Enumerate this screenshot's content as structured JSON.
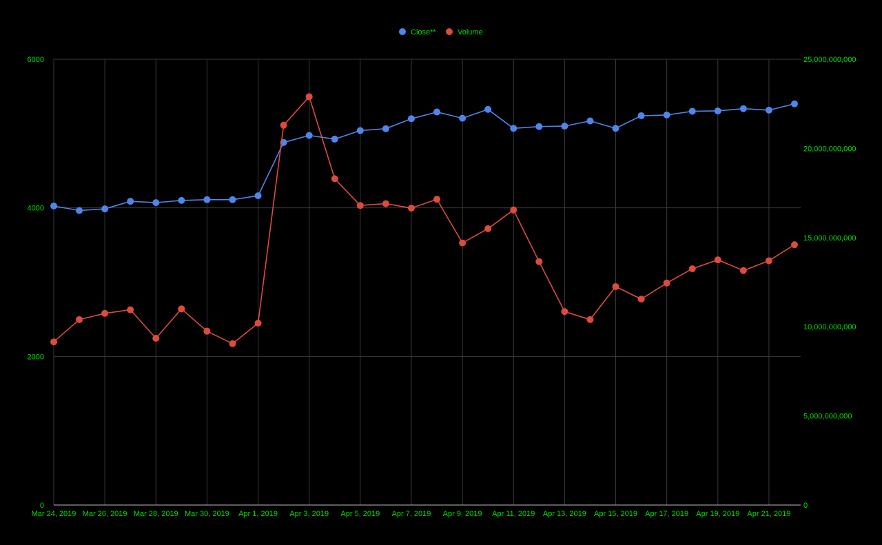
{
  "colors": {
    "background": "#000000",
    "grid": "#3a3a3a",
    "axis_line": "#bdbdbd",
    "label": "#00e000",
    "close": "#4f86ec",
    "volume": "#dd4b3e"
  },
  "legend": {
    "placement": "top-center",
    "close_label": "Close**",
    "volume_label": "Volume"
  },
  "chart_data": {
    "type": "line",
    "title": "",
    "xlabel": "",
    "ylabel": "",
    "y2label": "",
    "grid": true,
    "x": [
      "Mar 24, 2019",
      "Mar 25, 2019",
      "Mar 26, 2019",
      "Mar 27, 2019",
      "Mar 28, 2019",
      "Mar 29, 2019",
      "Mar 30, 2019",
      "Mar 31, 2019",
      "Apr 1, 2019",
      "Apr 2, 2019",
      "Apr 3, 2019",
      "Apr 4, 2019",
      "Apr 5, 2019",
      "Apr 6, 2019",
      "Apr 7, 2019",
      "Apr 8, 2019",
      "Apr 9, 2019",
      "Apr 10, 2019",
      "Apr 11, 2019",
      "Apr 12, 2019",
      "Apr 13, 2019",
      "Apr 14, 2019",
      "Apr 15, 2019",
      "Apr 16, 2019",
      "Apr 17, 2019",
      "Apr 18, 2019",
      "Apr 19, 2019",
      "Apr 20, 2019",
      "Apr 21, 2019",
      "Apr 22, 2019"
    ],
    "x_tick_labels": [
      "Mar 24, 2019",
      "Mar 26, 2019",
      "Mar 28, 2019",
      "Mar 30, 2019",
      "Apr 1, 2019",
      "Apr 3, 2019",
      "Apr 5, 2019",
      "Apr 7, 2019",
      "Apr 9, 2019",
      "Apr 11, 2019",
      "Apr 13, 2019",
      "Apr 15, 2019",
      "Apr 17, 2019",
      "Apr 19, 2019",
      "Apr 21, 2019"
    ],
    "ylim": [
      0,
      6000
    ],
    "y_ticks": [
      "0",
      "2000",
      "4000",
      "6000"
    ],
    "y2lim": [
      0,
      25000000000
    ],
    "y2_ticks": [
      "0",
      "5,000,000,000",
      "10,000,000,000",
      "15,000,000,000",
      "20,000,000,000",
      "25,000,000,000"
    ],
    "series": [
      {
        "name": "Close**",
        "axis": "left",
        "values": [
          4025,
          3964,
          3986,
          4088,
          4070,
          4100,
          4110,
          4110,
          4163,
          4880,
          4975,
          4925,
          5040,
          5065,
          5200,
          5290,
          5206,
          5325,
          5070,
          5094,
          5100,
          5170,
          5070,
          5240,
          5250,
          5300,
          5305,
          5335,
          5315,
          5400
        ]
      },
      {
        "name": "Volume",
        "axis": "right",
        "values": [
          9150000000,
          10400000000,
          10750000000,
          10950000000,
          9350000000,
          11000000000,
          9750000000,
          9050000000,
          10200000000,
          21300000000,
          22900000000,
          18300000000,
          16800000000,
          16900000000,
          16650000000,
          17150000000,
          14700000000,
          15500000000,
          16550000000,
          13650000000,
          10850000000,
          10400000000,
          12250000000,
          11550000000,
          12450000000,
          13250000000,
          13750000000,
          13150000000,
          13700000000,
          14600000000
        ]
      }
    ]
  }
}
